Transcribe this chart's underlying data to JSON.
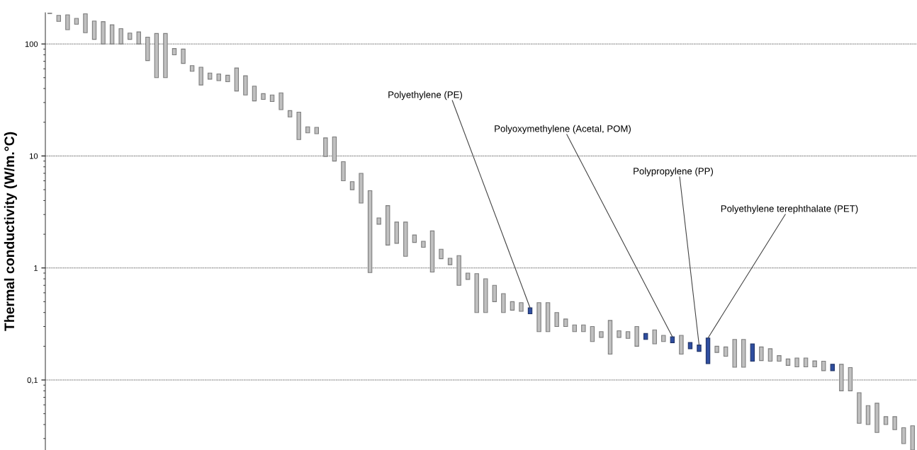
{
  "chart_data": {
    "type": "bar",
    "ylabel": "Thermal conductivity (W/m.°C)",
    "log": "y",
    "grid": "y",
    "legend": false,
    "categories": [
      null,
      null,
      null,
      null,
      null,
      null,
      null,
      null,
      null,
      null,
      null,
      null,
      null,
      null,
      null,
      null,
      null,
      null,
      null,
      null,
      null,
      null,
      null,
      null,
      null,
      null,
      null,
      null,
      null,
      null,
      null,
      null,
      null,
      null,
      null,
      null,
      null,
      null,
      null,
      null,
      null,
      null,
      null,
      null,
      null,
      null,
      null,
      null,
      null,
      null,
      null,
      null,
      null,
      null,
      null,
      null,
      null,
      null,
      null,
      null,
      null,
      null,
      null,
      null,
      null,
      null,
      null,
      null,
      null,
      null,
      null,
      null,
      null,
      null,
      null,
      null,
      null,
      null,
      null,
      null,
      null,
      null,
      null,
      null,
      null,
      null,
      null,
      null,
      null,
      null,
      null,
      null,
      null,
      null,
      null,
      null,
      null,
      null
    ],
    "base": [
      187,
      159,
      134,
      150,
      126,
      110,
      100,
      100,
      100,
      110,
      100,
      71,
      50,
      50,
      80,
      67,
      57,
      43,
      48.5,
      47,
      46,
      38,
      35,
      31,
      32,
      30.6,
      25.9,
      22.3,
      14,
      16.1,
      15.8,
      9.9,
      9,
      6,
      5,
      3.8,
      0.91,
      2.46,
      1.6,
      1.66,
      1.27,
      1.69,
      1.53,
      0.92,
      1.21,
      1.07,
      0.7,
      0.79,
      0.4,
      0.4,
      0.5,
      0.4,
      0.42,
      0.41,
      0.39,
      0.27,
      0.27,
      0.3,
      0.3,
      0.27,
      0.27,
      0.22,
      0.24,
      0.17,
      0.24,
      0.235,
      0.2,
      0.23,
      0.21,
      0.22,
      0.215,
      0.17,
      0.19,
      0.18,
      0.14,
      0.176,
      0.163,
      0.13,
      0.13,
      0.147,
      0.149,
      0.147,
      0.147,
      0.135,
      0.131,
      0.131,
      0.131,
      0.121,
      0.121,
      0.08,
      0.08,
      0.041,
      0.04,
      0.034,
      0.04,
      0.036,
      0.027,
      0.0237
    ],
    "values": [
      3,
      21,
      48,
      19,
      60,
      50,
      58,
      48,
      37,
      15,
      28,
      44,
      74,
      74,
      11,
      23,
      7,
      19,
      6.5,
      7,
      6.5,
      23,
      17,
      11,
      4,
      4.4,
      10.7,
      3.1,
      10.6,
      2.1,
      2.2,
      4.6,
      5.8,
      2.9,
      0.9,
      3.2,
      3.99,
      0.34,
      2,
      0.91,
      1.3,
      0.28,
      0.2,
      1.22,
      0.26,
      0.15,
      0.59,
      0.11,
      0.49,
      0.4,
      0.2,
      0.19,
      0.08,
      0.08,
      0.05,
      0.22,
      0.22,
      0.1,
      0.05,
      0.04,
      0.04,
      0.08,
      0.03,
      0.17,
      0.035,
      0.035,
      0.1,
      0.03,
      0.07,
      0.03,
      0.028,
      0.08,
      0.026,
      0.025,
      0.097,
      0.024,
      0.034,
      0.1,
      0.1,
      0.063,
      0.048,
      0.043,
      0.018,
      0.019,
      0.026,
      0.026,
      0.017,
      0.026,
      0.017,
      0.058,
      0.049,
      0.036,
      0.019,
      0.028,
      0.007,
      0.011,
      0.0105,
      0.0153
    ],
    "colors": [
      "#c0c0c0",
      "#c0c0c0",
      "#c0c0c0",
      "#c0c0c0",
      "#c0c0c0",
      "#c0c0c0",
      "#c0c0c0",
      "#c0c0c0",
      "#c0c0c0",
      "#c0c0c0",
      "#c0c0c0",
      "#c0c0c0",
      "#c0c0c0",
      "#c0c0c0",
      "#c0c0c0",
      "#c0c0c0",
      "#c0c0c0",
      "#c0c0c0",
      "#c0c0c0",
      "#c0c0c0",
      "#c0c0c0",
      "#c0c0c0",
      "#c0c0c0",
      "#c0c0c0",
      "#c0c0c0",
      "#c0c0c0",
      "#c0c0c0",
      "#c0c0c0",
      "#c0c0c0",
      "#c0c0c0",
      "#c0c0c0",
      "#c0c0c0",
      "#c0c0c0",
      "#c0c0c0",
      "#c0c0c0",
      "#c0c0c0",
      "#c0c0c0",
      "#c0c0c0",
      "#c0c0c0",
      "#c0c0c0",
      "#c0c0c0",
      "#c0c0c0",
      "#c0c0c0",
      "#c0c0c0",
      "#c0c0c0",
      "#c0c0c0",
      "#c0c0c0",
      "#c0c0c0",
      "#c0c0c0",
      "#c0c0c0",
      "#c0c0c0",
      "#c0c0c0",
      "#c0c0c0",
      "#c0c0c0",
      "#2f4ea0",
      "#c0c0c0",
      "#c0c0c0",
      "#c0c0c0",
      "#c0c0c0",
      "#c0c0c0",
      "#c0c0c0",
      "#c0c0c0",
      "#c0c0c0",
      "#c0c0c0",
      "#c0c0c0",
      "#c0c0c0",
      "#c0c0c0",
      "#2f4ea0",
      "#c0c0c0",
      "#c0c0c0",
      "#2f4ea0",
      "#c0c0c0",
      "#2f4ea0",
      "#2f4ea0",
      "#2f4ea0",
      "#c0c0c0",
      "#c0c0c0",
      "#c0c0c0",
      "#c0c0c0",
      "#2f4ea0",
      "#c0c0c0",
      "#c0c0c0",
      "#c0c0c0",
      "#c0c0c0",
      "#c0c0c0",
      "#c0c0c0",
      "#c0c0c0",
      "#c0c0c0",
      "#2f4ea0",
      "#c0c0c0",
      "#c0c0c0",
      "#c0c0c0",
      "#c0c0c0",
      "#c0c0c0",
      "#c0c0c0",
      "#c0c0c0",
      "#c0c0c0",
      "#c0c0c0"
    ],
    "ylim": [
      0.0237,
      190
    ],
    "yticks": [
      {
        "value": 0.1,
        "label": "0,1"
      },
      1,
      10,
      100
    ],
    "annotations": [
      "Polyethylene (PE)",
      "Polyoxymethylene (Acetal, POM)",
      "Polypropylene (PP)",
      "Polyethylene terephthalate (PET)"
    ]
  }
}
